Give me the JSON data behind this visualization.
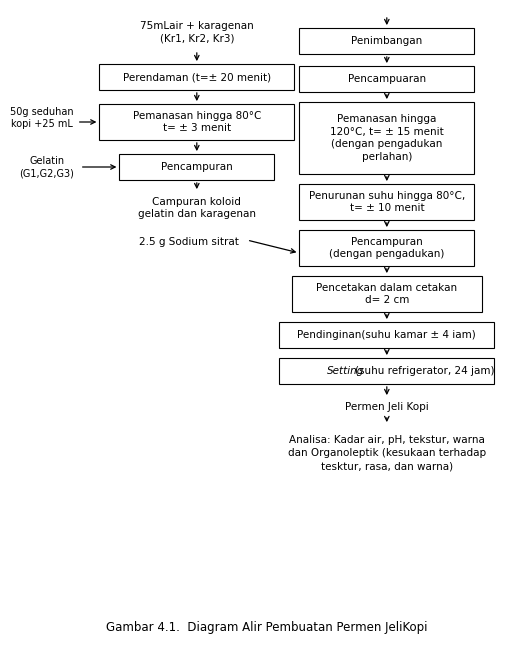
{
  "bg_color": "#ffffff",
  "box_color": "#ffffff",
  "box_edge_color": "#000000",
  "text_color": "#000000",
  "arrow_color": "#000000",
  "font_size": 7.5,
  "title_font_size": 8.5,
  "fig_caption": "Gambar 4.1.  Diagram Alir Pembuatan Permen JeliKopi",
  "left_label_top": "75mLair + karagenan\n(Kr1, Kr2, Kr3)",
  "left_box1_text": "Perendaman (t=± 20 menit)",
  "left_box2_text": "Pemanasan hingga 80°C\nt= ± 3 menit",
  "left_box3_text": "Pencampuran",
  "left_label_koloid": "Campuran koloid\ngelatin dan karagenan",
  "left_label_sodium": "2.5 g Sodium sitrat",
  "left_arrow1_text": "50g seduhan\nkopi +25 mL",
  "left_arrow2_text": "Gelatin\n(G1,G2,G3)",
  "right_box0_text": "Penimbangan",
  "right_box1_text": "Pencampuaran",
  "right_box2_text": "Pemanasan hingga\n120°C, t= ± 15 menit\n(dengan pengadukan\nperlahan)",
  "right_box3_text": "Penurunan suhu hingga 80°C,\nt= ± 10 menit",
  "right_box4_text": "Pencampuran\n(dengan pengadukan)",
  "right_box5_text": "Pencetakan dalam cetakan\nd= 2 cm",
  "right_box6_text": "Pendinginan(suhu kamar ± 4 iam)",
  "right_box7_setting": "Setting",
  "right_box7_rest": "(suhu refrigerator, 24 jam)",
  "right_label_jeli": "Permen Jeli Kopi",
  "right_label_analisa": "Analisa: Kadar air, pH, tekstur, warna\ndan Organoleptik (kesukaan terhadap\ntesktur, rasa, dan warna)"
}
